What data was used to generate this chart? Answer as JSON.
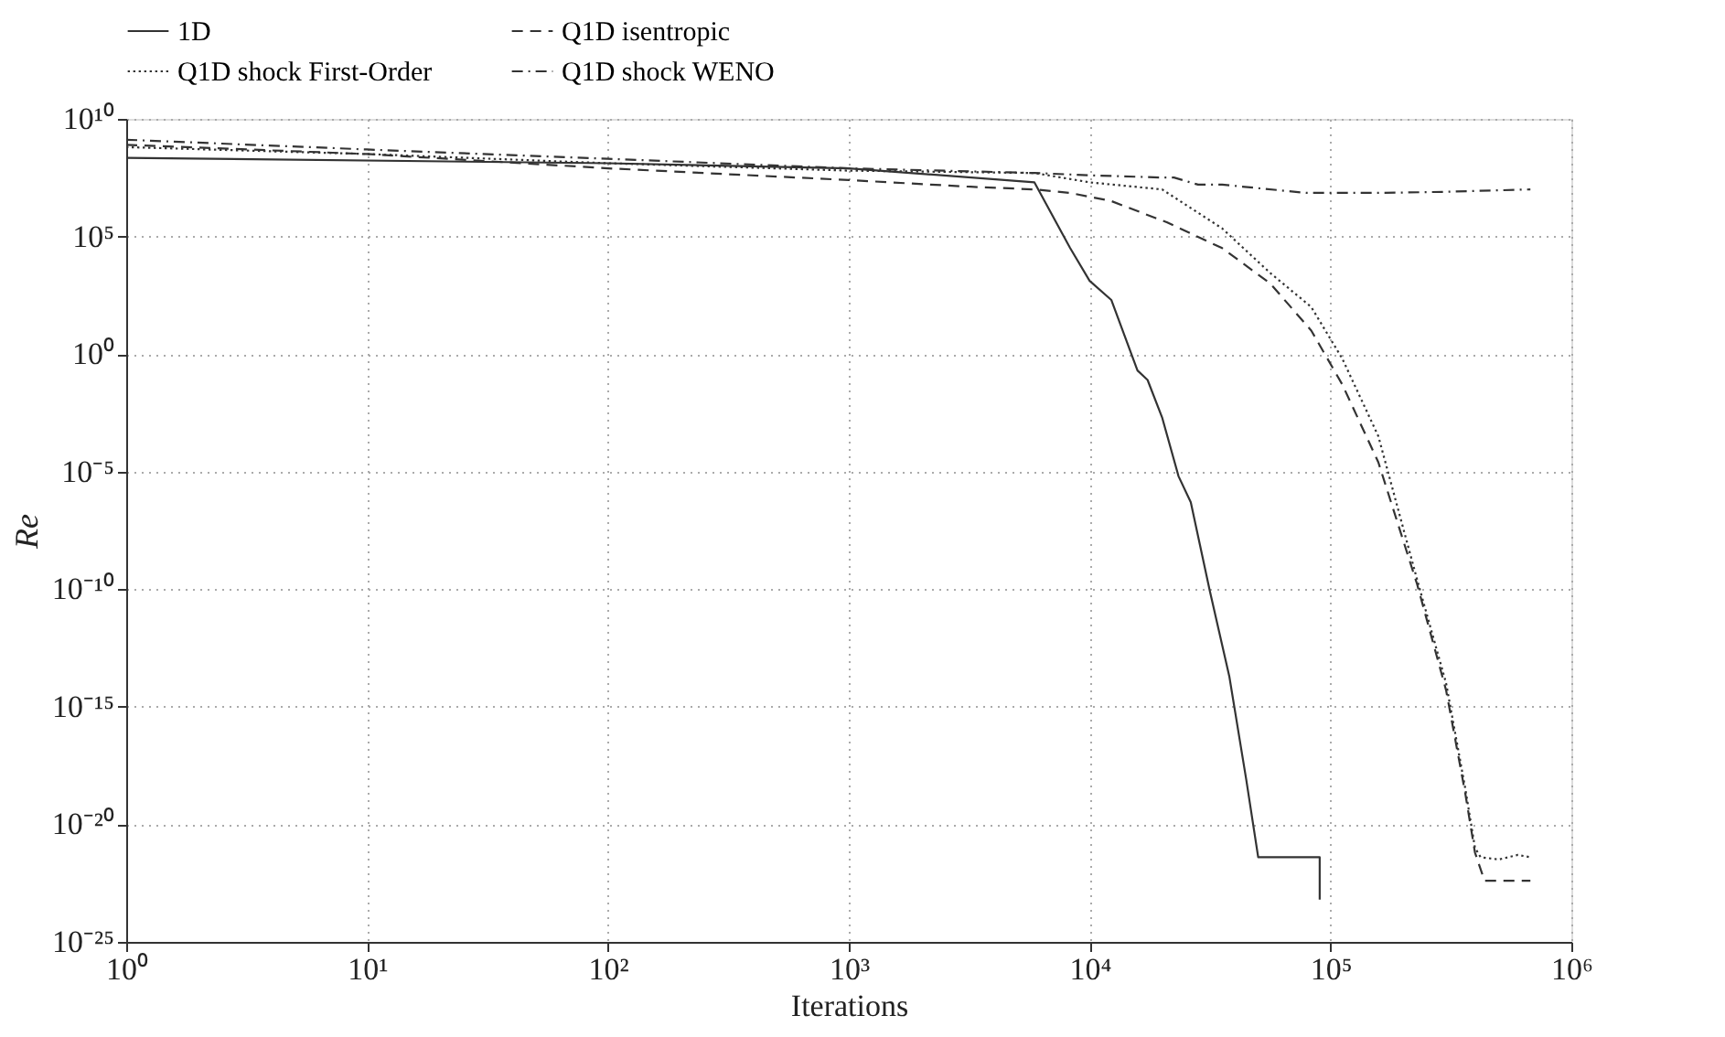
{
  "chart_data": {
    "type": "line",
    "xlabel": "Iterations",
    "ylabel": "Re",
    "log": "xy",
    "grid": true,
    "legend": "top",
    "marker": "none",
    "xlim": [
      1,
      1000000
    ],
    "ylim": [
      1e-25,
      10000000000.0
    ],
    "xticks": [
      {
        "value": 1,
        "label": "10⁰"
      },
      {
        "value": 10,
        "label": "10¹"
      },
      {
        "value": 100,
        "label": "10²"
      },
      {
        "value": 1000,
        "label": "10³"
      },
      {
        "value": 10000,
        "label": "10⁴"
      },
      {
        "value": 100000,
        "label": "10⁵"
      },
      {
        "value": 1000000,
        "label": "10⁶"
      }
    ],
    "yticks": [
      {
        "value": 1e-25,
        "label": "10⁻²⁵"
      },
      {
        "value": 1e-20,
        "label": "10⁻²⁰"
      },
      {
        "value": 1e-15,
        "label": "10⁻¹⁵"
      },
      {
        "value": 1e-10,
        "label": "10⁻¹⁰"
      },
      {
        "value": 1e-05,
        "label": "10⁻⁵"
      },
      {
        "value": 1,
        "label": "10⁰"
      },
      {
        "value": 100000,
        "label": "10⁵"
      },
      {
        "value": 10000000000.0,
        "label": "10¹⁰"
      }
    ],
    "series": [
      {
        "name": "1D",
        "color": "#333333",
        "line_style": "solid",
        "x": [
          1,
          100,
          1000,
          5900,
          8300,
          10000,
          12300,
          15800,
          17400,
          20000,
          23400,
          26300,
          31600,
          38000,
          44700,
          50100,
          90200,
          90200
        ],
        "values": [
          220000000.0,
          130000000.0,
          79000000.0,
          20000000.0,
          32000.0,
          1300.0,
          200.0,
          0.2,
          0.079,
          0.002,
          6.3e-06,
          5e-07,
          7.9e-11,
          2e-14,
          7.9e-19,
          4e-22,
          4e-22,
          6.3e-24
        ]
      },
      {
        "name": "Q1D isentropic",
        "color": "#333333",
        "line_style": "dashed",
        "x": [
          1,
          10,
          100,
          1000,
          3200,
          5900,
          8300,
          12300,
          20900,
          35500,
          56200,
          83200,
          112000,
          158000,
          229000,
          302000,
          363000,
          398000,
          436000,
          676000
        ],
        "values": [
          790000000.0,
          320000000.0,
          79000000.0,
          25000000.0,
          13000000.0,
          10000000.0,
          7100000.0,
          3200000.0,
          400000.0,
          32000.0,
          1000.0,
          10,
          0.05,
          2.5e-05,
          1.6e-10,
          5e-15,
          2e-19,
          6.3e-22,
          4e-23,
          4e-23
        ]
      },
      {
        "name": "Q1D shock First-Order",
        "color": "#333333",
        "line_style": "dotted",
        "x": [
          1,
          10,
          100,
          1000,
          5900,
          10000,
          20000,
          35500,
          56200,
          83200,
          112000,
          158000,
          229000,
          302000,
          363000,
          398000,
          420000,
          500000,
          600000,
          676000
        ],
        "values": [
          630000000.0,
          320000000.0,
          130000000.0,
          63000000.0,
          50000000.0,
          20000000.0,
          10000000.0,
          220000.0,
          2800.0,
          100,
          0.63,
          0.00032,
          2.5e-10,
          1e-14,
          3.2e-19,
          1e-21,
          4e-22,
          3.2e-22,
          5e-22,
          4e-22
        ]
      },
      {
        "name": "Q1D shock WENO",
        "color": "#333333",
        "line_style": "dashdot",
        "x": [
          1,
          10,
          100,
          1000,
          5900,
          10000,
          20000,
          22400,
          28200,
          35500,
          79400,
          158000,
          300000,
          676000
        ],
        "values": [
          1300000000.0,
          500000000.0,
          200000000.0,
          79000000.0,
          50000000.0,
          40000000.0,
          32000000.0,
          32000000.0,
          16000000.0,
          16000000.0,
          7100000.0,
          7100000.0,
          7900000.0,
          10000000.0
        ]
      }
    ]
  }
}
